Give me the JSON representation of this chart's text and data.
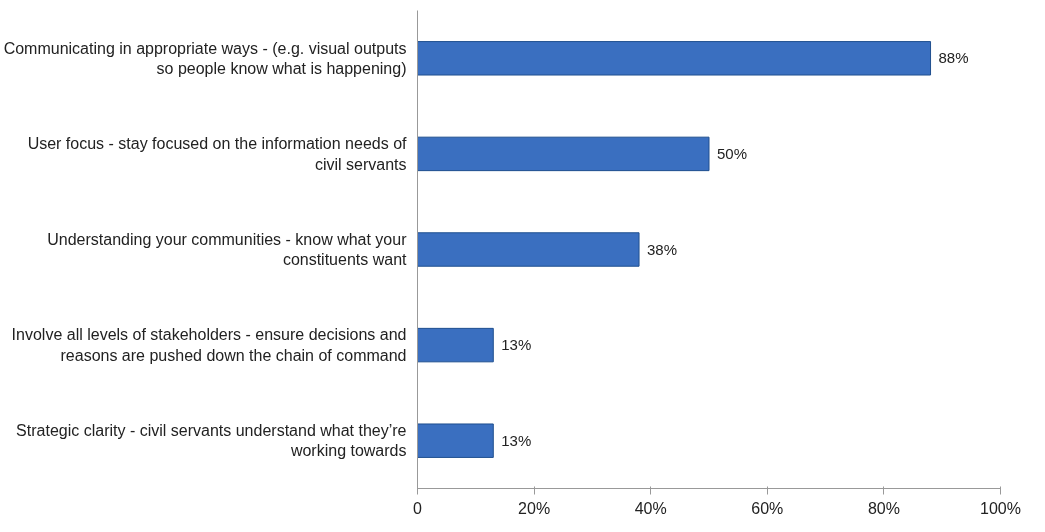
{
  "chart_data": {
    "type": "bar",
    "orientation": "horizontal",
    "categories": [
      "Communicating in appropriate ways - (e.g. visual outputs so people know what is happening)",
      "User focus - stay focused on the information needs of civil servants",
      "Understanding your communities - know what your constituents want",
      "Involve all levels of stakeholders - ensure decisions and reasons are pushed down the chain of command",
      "Strategic clarity - civil servants understand what they’re working towards"
    ],
    "values": [
      88,
      50,
      38,
      13,
      13
    ],
    "value_labels": [
      "88%",
      "50%",
      "38%",
      "13%",
      "13%"
    ],
    "color": "#3a6fc0",
    "xlim": [
      0,
      100
    ],
    "xticks": [
      0,
      {
        "value": 20,
        "label": "20%"
      },
      {
        "value": 40,
        "label": "40%"
      },
      {
        "value": 60,
        "label": "60%"
      },
      {
        "value": 80,
        "label": "80%"
      },
      {
        "value": 100,
        "label": "100%"
      }
    ],
    "grid": false
  }
}
